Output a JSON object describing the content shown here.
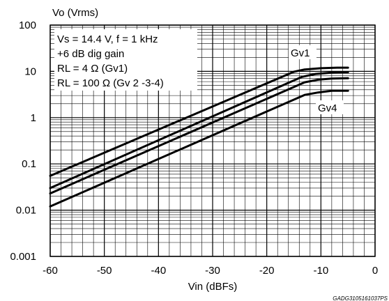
{
  "chart_data": {
    "type": "line",
    "ylabel": "Vo (Vrms)",
    "xlabel": "Vin (dBFs)",
    "xlim": [
      -60,
      0
    ],
    "ylim": [
      0.001,
      100
    ],
    "yscale": "log",
    "x_ticks": [
      "-60",
      "-50",
      "-40",
      "-30",
      "-20",
      "-10",
      "0"
    ],
    "y_ticks": [
      "0.001",
      "0.01",
      "0.1",
      "1",
      "10",
      "100"
    ],
    "grid": true,
    "annotations": [
      "Vs = 14.4 V, f = 1 kHz",
      "+6 dB dig gain",
      "RL = 4 Ω (Gv1)",
      "RL = 100 Ω (Gv 2 -3-4)"
    ],
    "series_labels": [
      "Gv1",
      "Gv4"
    ],
    "series": [
      {
        "name": "Gv1",
        "x": [
          -60,
          -15,
          -13,
          -10,
          -7,
          -5
        ],
        "y": [
          0.055,
          9.8,
          11.0,
          11.7,
          12.0,
          12.0
        ]
      },
      {
        "name": "",
        "x": [
          -60,
          -13.5,
          -11,
          -8,
          -5
        ],
        "y": [
          0.03,
          7.6,
          8.8,
          9.4,
          9.6
        ]
      },
      {
        "name": "",
        "x": [
          -60,
          -13,
          -10.5,
          -8,
          -5
        ],
        "y": [
          0.023,
          5.8,
          6.6,
          7.0,
          7.1
        ]
      },
      {
        "name": "Gv4",
        "x": [
          -60,
          -13,
          -10.5,
          -8,
          -5
        ],
        "y": [
          0.012,
          3.1,
          3.5,
          3.8,
          3.8
        ]
      }
    ]
  },
  "doc_code": "GADG3105161037PS",
  "colors": {
    "line": "#000000",
    "grid": "#000000",
    "background": "#ffffff"
  }
}
